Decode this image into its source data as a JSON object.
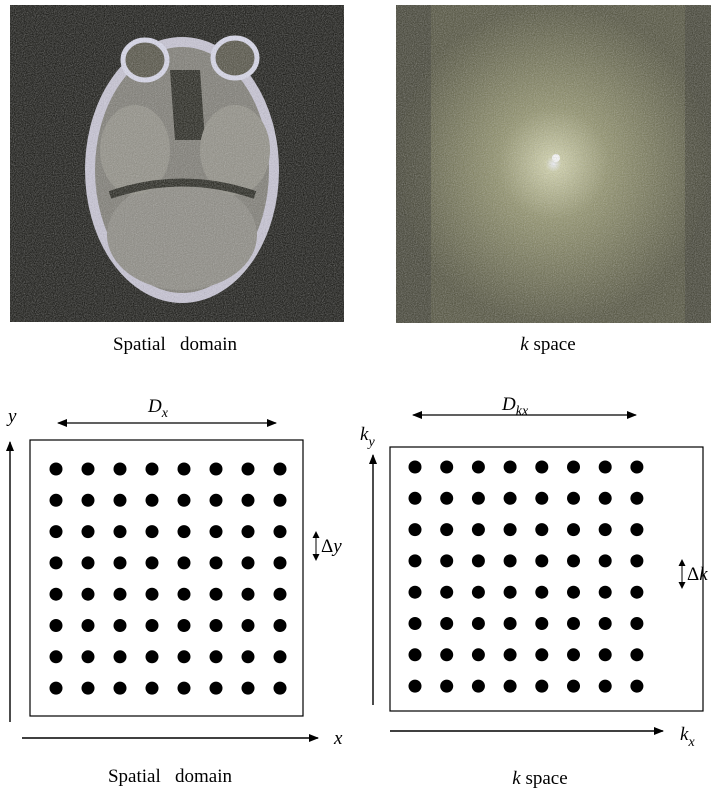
{
  "top": {
    "left_caption": "Spatial   domain",
    "right_caption": {
      "italic": "k",
      "rest": " space"
    }
  },
  "bottom": {
    "left": {
      "caption": "Spatial   domain",
      "x_axis": "x",
      "y_axis": "y",
      "width_label": {
        "base": "D",
        "sub": "x"
      },
      "step_label": {
        "symbol": "Δ",
        "var": "y"
      }
    },
    "right": {
      "caption": {
        "italic": "k",
        "rest": " space"
      },
      "x_axis": {
        "base": "k",
        "sub": "x"
      },
      "y_axis": {
        "base": "k",
        "sub": "y"
      },
      "width_label": {
        "base": "D",
        "sub": "kx"
      },
      "step_label": {
        "symbol": "Δ",
        "var": "k"
      }
    }
  }
}
